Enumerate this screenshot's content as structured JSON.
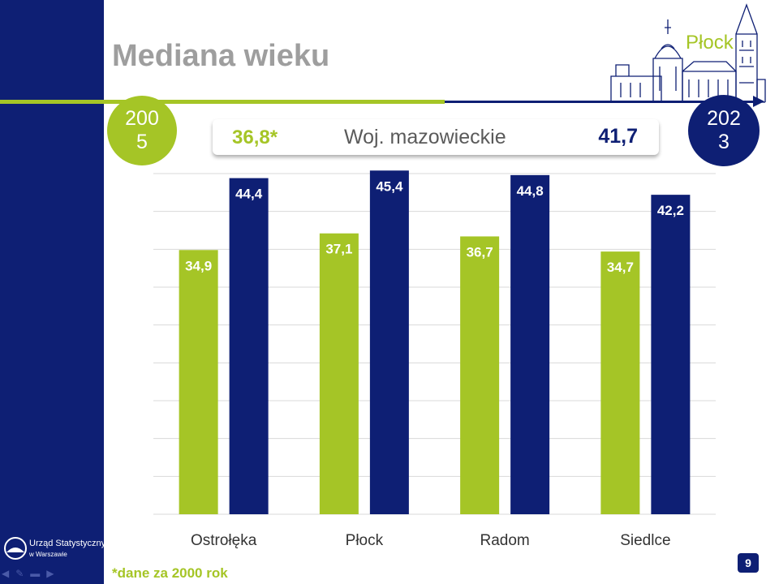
{
  "title": "Mediana wieku",
  "city": "Płock",
  "years": {
    "start": "2005",
    "end": "2023"
  },
  "summary": {
    "left_value": "36,8*",
    "label": "Woj. mazowieckie",
    "right_value": "41,7"
  },
  "footnote": "*dane za 2000 rok",
  "logo": {
    "line1": "Urząd Statystyczny",
    "line2": "w Warszawie"
  },
  "page_number": "9",
  "colors": {
    "navy": "#0e1f74",
    "green": "#a5c526",
    "title_gray": "#9e9e9e",
    "grid": "#d9d9d9"
  },
  "chart_data": {
    "type": "bar",
    "categories": [
      "Ostrołęka",
      "Płock",
      "Radom",
      "Siedlce"
    ],
    "series": [
      {
        "values": [
          34.9,
          37.1,
          36.7,
          34.7
        ],
        "labels": [
          "34,9",
          "37,1",
          "36,7",
          "34,7"
        ],
        "color": "#a5c526"
      },
      {
        "values": [
          44.4,
          45.4,
          44.8,
          42.2
        ],
        "labels": [
          "44,4",
          "45,4",
          "44,8",
          "42,2"
        ],
        "color": "#0e1f74"
      }
    ],
    "ylim": [
      0,
      45
    ],
    "grid": true,
    "legend": "none"
  }
}
